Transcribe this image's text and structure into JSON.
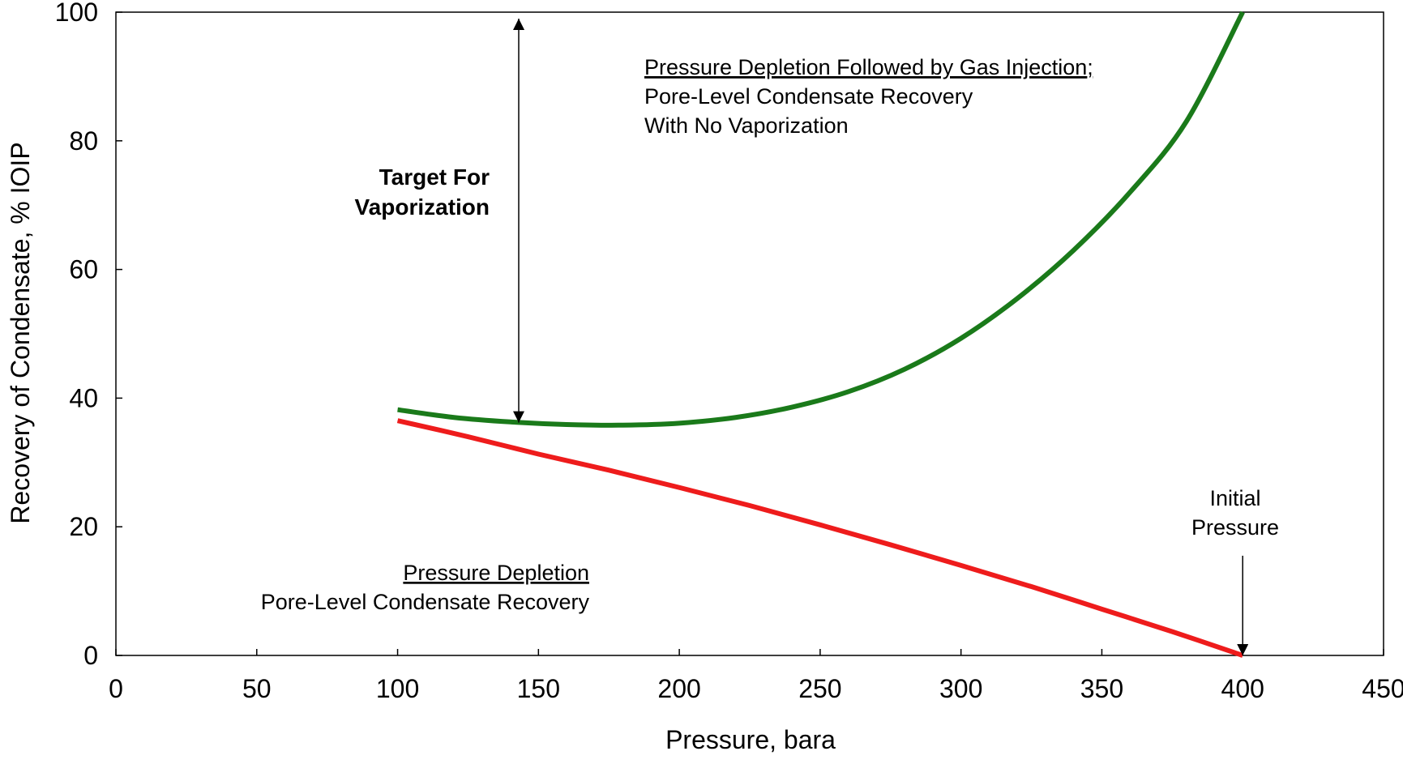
{
  "chart_data": {
    "type": "line",
    "title": "",
    "xlabel": "Pressure, bara",
    "ylabel": "Recovery of Condensate, % IOIP",
    "xlim": [
      0,
      450
    ],
    "ylim": [
      0,
      100
    ],
    "x_ticks": [
      0,
      50,
      100,
      150,
      200,
      250,
      300,
      350,
      400,
      450
    ],
    "y_ticks": [
      0,
      20,
      40,
      60,
      80,
      100
    ],
    "x_tick_labels": [
      "0",
      "50",
      "100",
      "150",
      "200",
      "250",
      "300",
      "350",
      "400",
      "450"
    ],
    "y_tick_labels": [
      "0",
      "20",
      "40",
      "60",
      "80",
      "100"
    ],
    "grid": false,
    "legend": "none",
    "series": [
      {
        "color": "#1a7a1a",
        "points": [
          [
            100,
            38.2
          ],
          [
            120,
            37.0
          ],
          [
            140,
            36.3
          ],
          [
            160,
            35.9
          ],
          [
            180,
            35.8
          ],
          [
            200,
            36.1
          ],
          [
            220,
            37.0
          ],
          [
            240,
            38.6
          ],
          [
            260,
            41.0
          ],
          [
            280,
            44.5
          ],
          [
            300,
            49.3
          ],
          [
            320,
            55.5
          ],
          [
            340,
            63.0
          ],
          [
            360,
            72.0
          ],
          [
            380,
            83.0
          ],
          [
            400,
            100
          ]
        ]
      },
      {
        "color": "#ee1c1c",
        "points": [
          [
            100,
            36.5
          ],
          [
            125,
            34.0
          ],
          [
            150,
            31.3
          ],
          [
            175,
            28.8
          ],
          [
            200,
            26.1
          ],
          [
            225,
            23.3
          ],
          [
            250,
            20.3
          ],
          [
            275,
            17.2
          ],
          [
            300,
            14.0
          ],
          [
            325,
            10.7
          ],
          [
            350,
            7.2
          ],
          [
            375,
            3.7
          ],
          [
            400,
            0
          ]
        ]
      }
    ],
    "annotations": {
      "target_title_line1": "Target For",
      "target_title_line2": "Vaporization",
      "target_arrow": {
        "x": 143,
        "y_from": 36.2,
        "y_to": 99
      },
      "gas_injection_line1": "Pressure Depletion Followed by Gas Injection",
      "gas_injection_semicolon": ";",
      "gas_injection_line2": "Pore-Level Condensate Recovery",
      "gas_injection_line3": "With No Vaporization",
      "depletion_line1": "Pressure Depletion",
      "depletion_line2": "Pore-Level Condensate Recovery",
      "initial_line1": "Initial",
      "initial_line2": "Pressure",
      "initial_arrow": {
        "x": 400,
        "y_from": 15.5,
        "y_to": 0
      }
    }
  }
}
